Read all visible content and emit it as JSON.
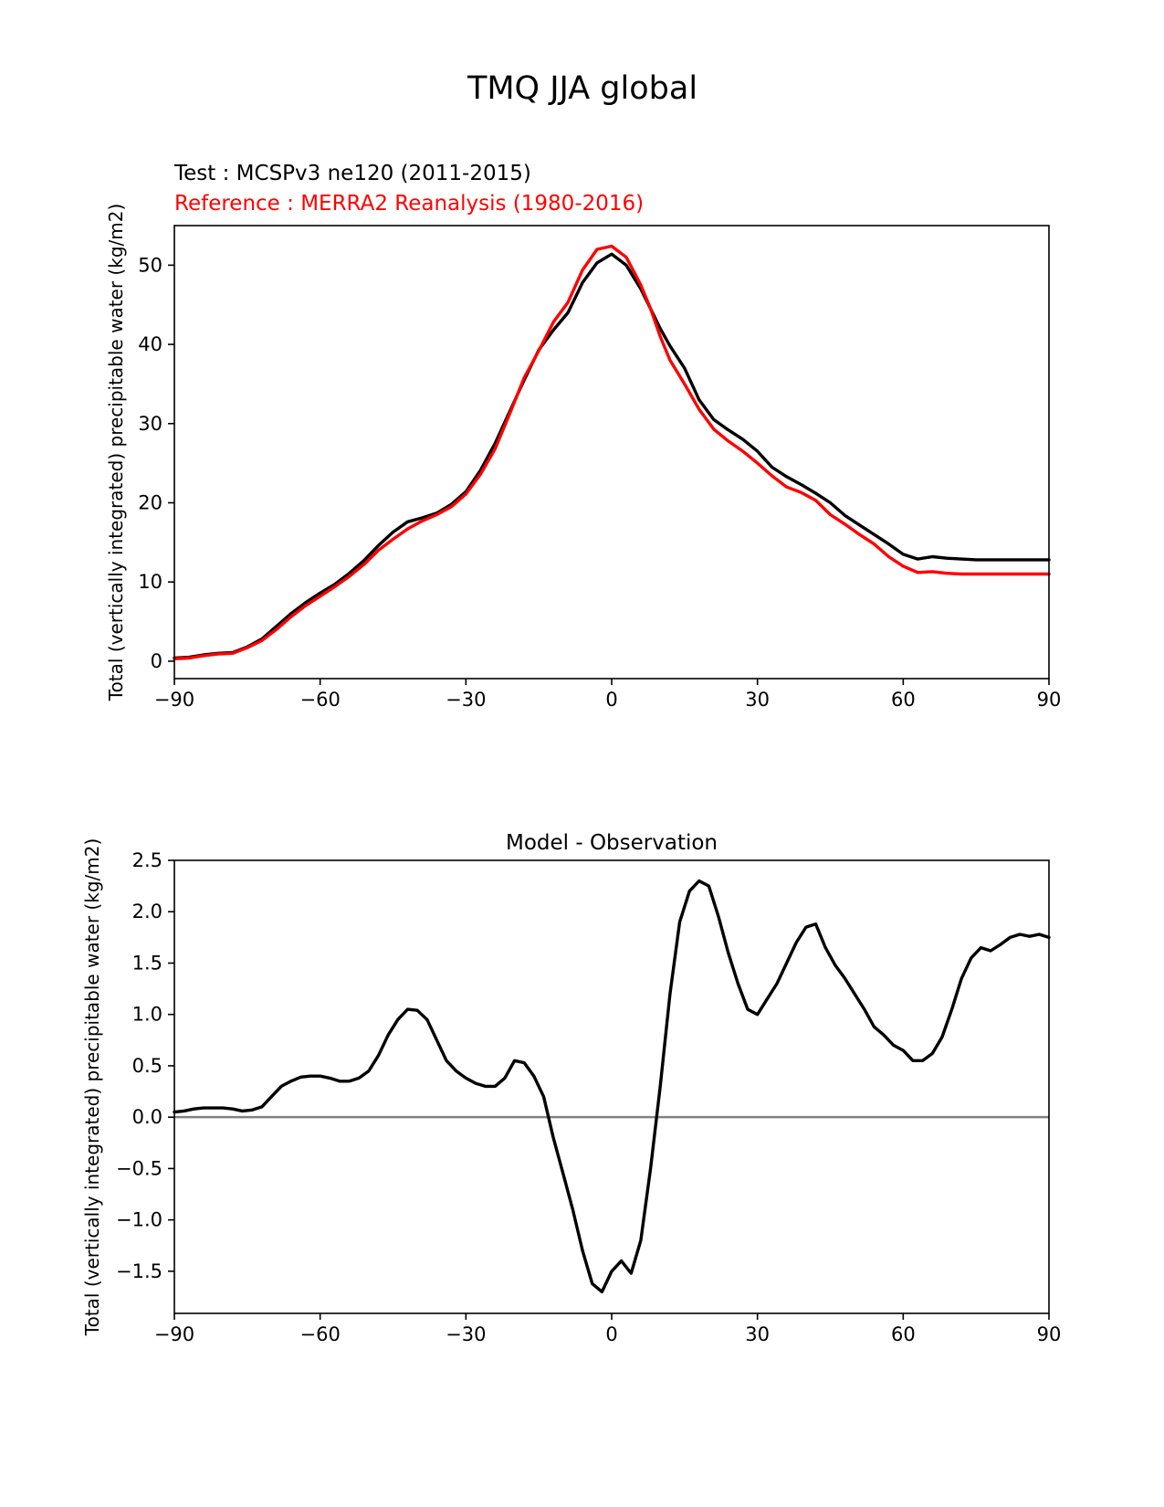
{
  "figure": {
    "title": "TMQ JJA global",
    "test_label": "Test : MCSPv3 ne120 (2011-2015)",
    "reference_label": "Reference : MERRA2 Reanalysis (1980-2016)",
    "colors": {
      "test": "#000000",
      "reference": "#ff0000",
      "zero_line": "#808080"
    }
  },
  "chart_data": [
    {
      "type": "line",
      "title": "",
      "xlabel": "",
      "ylabel": "Total (vertically integrated) precipitable water (kg/m2)",
      "xlim": [
        -90,
        90
      ],
      "ylim": [
        -2.2,
        55
      ],
      "xticks": [
        -90,
        -60,
        -30,
        0,
        30,
        60,
        90
      ],
      "xtick_labels": [
        "−90",
        "−60",
        "−30",
        "0",
        "30",
        "60",
        "90"
      ],
      "yticks": [
        0,
        10,
        20,
        30,
        40,
        50
      ],
      "ytick_labels": [
        "0",
        "10",
        "20",
        "30",
        "40",
        "50"
      ],
      "series": [
        {
          "name": "Test : MCSPv3 ne120 (2011-2015)",
          "color": "#000000",
          "x": [
            -90,
            -87,
            -84,
            -81,
            -78,
            -75,
            -72,
            -69,
            -66,
            -63,
            -60,
            -57,
            -54,
            -51,
            -48,
            -45,
            -42,
            -39,
            -36,
            -33,
            -30,
            -27,
            -24,
            -21,
            -18,
            -15,
            -12,
            -9,
            -6,
            -3,
            0,
            3,
            6,
            8,
            10,
            12,
            15,
            18,
            21,
            24,
            27,
            30,
            33,
            36,
            39,
            42,
            45,
            48,
            51,
            54,
            57,
            60,
            63,
            66,
            69,
            72,
            75,
            78,
            81,
            84,
            87,
            90
          ],
          "y": [
            0.4,
            0.5,
            0.8,
            1.0,
            1.1,
            1.8,
            2.8,
            4.4,
            6.0,
            7.4,
            8.6,
            9.7,
            11.1,
            12.7,
            14.6,
            16.3,
            17.6,
            18.1,
            18.7,
            19.8,
            21.4,
            24.1,
            27.5,
            31.5,
            35.5,
            39.3,
            41.8,
            44.0,
            47.8,
            50.3,
            51.4,
            50.0,
            47.0,
            44.5,
            42.0,
            39.8,
            37.0,
            33.0,
            30.5,
            29.2,
            28.0,
            26.5,
            24.5,
            23.3,
            22.3,
            21.2,
            20.0,
            18.4,
            17.2,
            16.0,
            14.8,
            13.5,
            12.9,
            13.2,
            13.0,
            12.9,
            12.8,
            12.8,
            12.8,
            12.8,
            12.8,
            12.8
          ]
        },
        {
          "name": "Reference : MERRA2 Reanalysis (1980-2016)",
          "color": "#ff0000",
          "x": [
            -90,
            -87,
            -84,
            -81,
            -78,
            -75,
            -72,
            -69,
            -66,
            -63,
            -60,
            -57,
            -54,
            -51,
            -48,
            -45,
            -42,
            -39,
            -36,
            -33,
            -30,
            -27,
            -24,
            -21,
            -18,
            -15,
            -12,
            -9,
            -6,
            -3,
            0,
            3,
            6,
            8,
            10,
            12,
            15,
            18,
            21,
            24,
            27,
            30,
            33,
            36,
            39,
            42,
            45,
            48,
            51,
            54,
            57,
            60,
            63,
            66,
            69,
            72,
            75,
            78,
            81,
            84,
            87,
            90
          ],
          "y": [
            0.3,
            0.4,
            0.7,
            0.9,
            1.0,
            1.7,
            2.6,
            4.0,
            5.6,
            7.0,
            8.2,
            9.4,
            10.7,
            12.2,
            14.0,
            15.4,
            16.7,
            17.7,
            18.5,
            19.5,
            21.1,
            23.6,
            26.8,
            31.2,
            35.8,
            39.2,
            42.8,
            45.3,
            49.4,
            52.0,
            52.4,
            51.0,
            47.5,
            44.5,
            41.0,
            38.0,
            35.0,
            31.8,
            29.3,
            27.8,
            26.5,
            25.0,
            23.4,
            22.0,
            21.3,
            20.3,
            18.5,
            17.3,
            16.0,
            14.8,
            13.2,
            12.0,
            11.2,
            11.3,
            11.1,
            11.0,
            11.0,
            11.0,
            11.0,
            11.0,
            11.0,
            11.0
          ]
        }
      ]
    },
    {
      "type": "line",
      "title": "Model - Observation",
      "xlabel": "",
      "ylabel": "Total (vertically integrated) precipitable water (kg/m2)",
      "xlim": [
        -90,
        90
      ],
      "ylim": [
        -1.91,
        2.5
      ],
      "xticks": [
        -90,
        -60,
        -30,
        0,
        30,
        60,
        90
      ],
      "xtick_labels": [
        "−90",
        "−60",
        "−30",
        "0",
        "30",
        "60",
        "90"
      ],
      "yticks": [
        -1.5,
        -1.0,
        -0.5,
        0.0,
        0.5,
        1.0,
        1.5,
        2.0,
        2.5
      ],
      "ytick_labels": [
        "−1.5",
        "−1.0",
        "−0.5",
        "0.0",
        "0.5",
        "1.0",
        "1.5",
        "2.0",
        "2.5"
      ],
      "reference_line": 0.0,
      "series": [
        {
          "name": "Model - Observation",
          "color": "#000000",
          "x": [
            -90,
            -88,
            -86,
            -84,
            -82,
            -80,
            -78,
            -76,
            -74,
            -72,
            -70,
            -68,
            -66,
            -64,
            -62,
            -60,
            -58,
            -56,
            -54,
            -52,
            -50,
            -48,
            -46,
            -44,
            -42,
            -40,
            -38,
            -36,
            -34,
            -32,
            -30,
            -28,
            -26,
            -24,
            -22,
            -20,
            -18,
            -16,
            -14,
            -12,
            -10,
            -8,
            -6,
            -4,
            -2,
            0,
            2,
            4,
            6,
            8,
            10,
            12,
            14,
            16,
            18,
            20,
            22,
            24,
            26,
            28,
            30,
            32,
            34,
            36,
            38,
            40,
            42,
            44,
            46,
            48,
            50,
            52,
            54,
            56,
            58,
            60,
            62,
            64,
            66,
            68,
            70,
            72,
            74,
            76,
            78,
            80,
            82,
            84,
            86,
            88,
            90
          ],
          "y": [
            0.05,
            0.06,
            0.08,
            0.09,
            0.09,
            0.09,
            0.08,
            0.06,
            0.07,
            0.1,
            0.2,
            0.3,
            0.35,
            0.39,
            0.4,
            0.4,
            0.38,
            0.35,
            0.35,
            0.38,
            0.45,
            0.6,
            0.8,
            0.95,
            1.05,
            1.04,
            0.95,
            0.75,
            0.55,
            0.45,
            0.38,
            0.33,
            0.3,
            0.3,
            0.38,
            0.55,
            0.53,
            0.4,
            0.2,
            -0.2,
            -0.55,
            -0.9,
            -1.3,
            -1.62,
            -1.7,
            -1.5,
            -1.4,
            -1.52,
            -1.2,
            -0.5,
            0.3,
            1.2,
            1.9,
            2.2,
            2.3,
            2.25,
            1.95,
            1.6,
            1.3,
            1.05,
            1.0,
            1.15,
            1.3,
            1.5,
            1.7,
            1.85,
            1.88,
            1.65,
            1.48,
            1.35,
            1.2,
            1.05,
            0.88,
            0.8,
            0.7,
            0.65,
            0.55,
            0.55,
            0.62,
            0.78,
            1.05,
            1.35,
            1.55,
            1.65,
            1.62,
            1.68,
            1.75,
            1.78,
            1.76,
            1.78,
            1.75
          ]
        }
      ]
    }
  ]
}
